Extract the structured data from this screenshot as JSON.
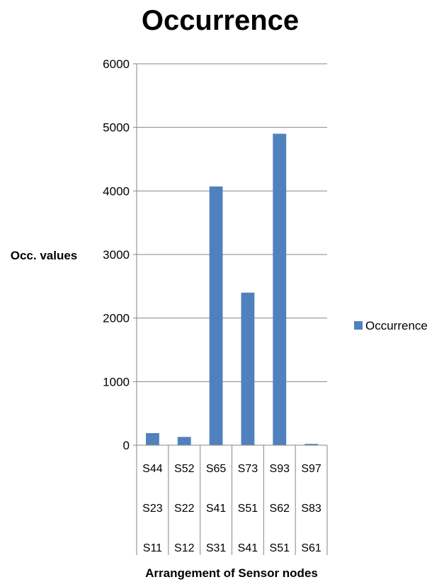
{
  "chart_data": {
    "type": "bar",
    "title": "Occurrence",
    "xlabel": "Arrangement of Sensor nodes",
    "ylabel": "Occ. values",
    "ylim": [
      0,
      6000
    ],
    "yticks": [
      "0",
      "1000",
      "2000",
      "3000",
      "4000",
      "5000",
      "6000"
    ],
    "categories": [
      [
        "S44",
        "S23",
        "S11"
      ],
      [
        "S52",
        "S22",
        "S12"
      ],
      [
        "S65",
        "S41",
        "S31"
      ],
      [
        "S73",
        "S51",
        "S41"
      ],
      [
        "S93",
        "S62",
        "S51"
      ],
      [
        "S97",
        "S83",
        "S61"
      ]
    ],
    "series": [
      {
        "name": "Occurrence",
        "values": [
          190,
          130,
          4070,
          2400,
          4900,
          20
        ],
        "color": "#4f81bd"
      }
    ],
    "grid": true,
    "legend": "right"
  }
}
